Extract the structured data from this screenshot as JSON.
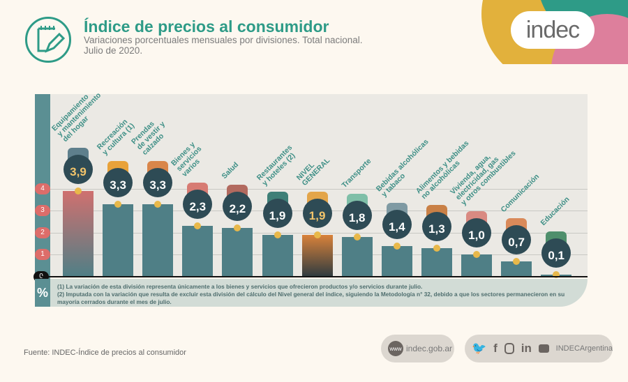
{
  "header": {
    "title": "Índice de precios al consumidor",
    "subtitle": "Variaciones porcentuales mensuales por divisiones. Total nacional.",
    "period": "Julio de 2020.",
    "logo": "indec"
  },
  "colors": {
    "accent": "#2e9b87",
    "bar": "#4f7f86",
    "badge": "#2e4b55",
    "dot": "#e8b84a",
    "tick": "#dd6d6a"
  },
  "chart_data": {
    "type": "bar",
    "title": "Índice de precios al consumidor",
    "ylabel": "%",
    "ylim": [
      0,
      4
    ],
    "yticks": [
      "0",
      "1",
      "2",
      "3",
      "4"
    ],
    "categories": [
      "Equipamiento\ny mantenimiento\ndel hogar",
      "Recreación\ny cultura (1)",
      "Prendas\nde vestir y\ncalzado",
      "Bienes y\nservicios\nvarios",
      "Salud",
      "Restaurantes\ny hoteles (2)",
      "NIVEL\nGENERAL",
      "Transporte",
      "Bebidas alcohólicas\ny tabaco",
      "Alimentos y bebidas\nno alcohólicas",
      "Vivienda, agua,\nelectricidad, gas\ny otros combustibles",
      "Comunicación",
      "Educación"
    ],
    "values": [
      3.9,
      3.3,
      3.3,
      2.3,
      2.2,
      1.9,
      1.9,
      1.8,
      1.4,
      1.3,
      1.0,
      0.7,
      0.1
    ],
    "labels": [
      "3,9",
      "3,3",
      "3,3",
      "2,3",
      "2,2",
      "1,9",
      "1,9",
      "1,8",
      "1,4",
      "1,3",
      "1,0",
      "0,7",
      "0,1"
    ]
  },
  "notes": [
    "(1) La variación de esta división representa únicamente a los bienes y servicios que ofrecieron productos y/o servicios durante julio.",
    "(2) Imputada con la variación que resulta de excluir esta división del cálculo del Nivel general del índice, siguiendo la Metodología n° 32, debido a que los sectores permanecieron en su mayoría cerrados durante el mes de julio."
  ],
  "footer": {
    "source": "Fuente: INDEC-Índice de precios al consumidor",
    "web_icon": "www",
    "website": "indec.gob.ar",
    "social_handle": "INDECArgentina",
    "social": [
      "twitter-icon",
      "facebook-icon",
      "instagram-icon",
      "linkedin-icon",
      "youtube-icon"
    ]
  }
}
